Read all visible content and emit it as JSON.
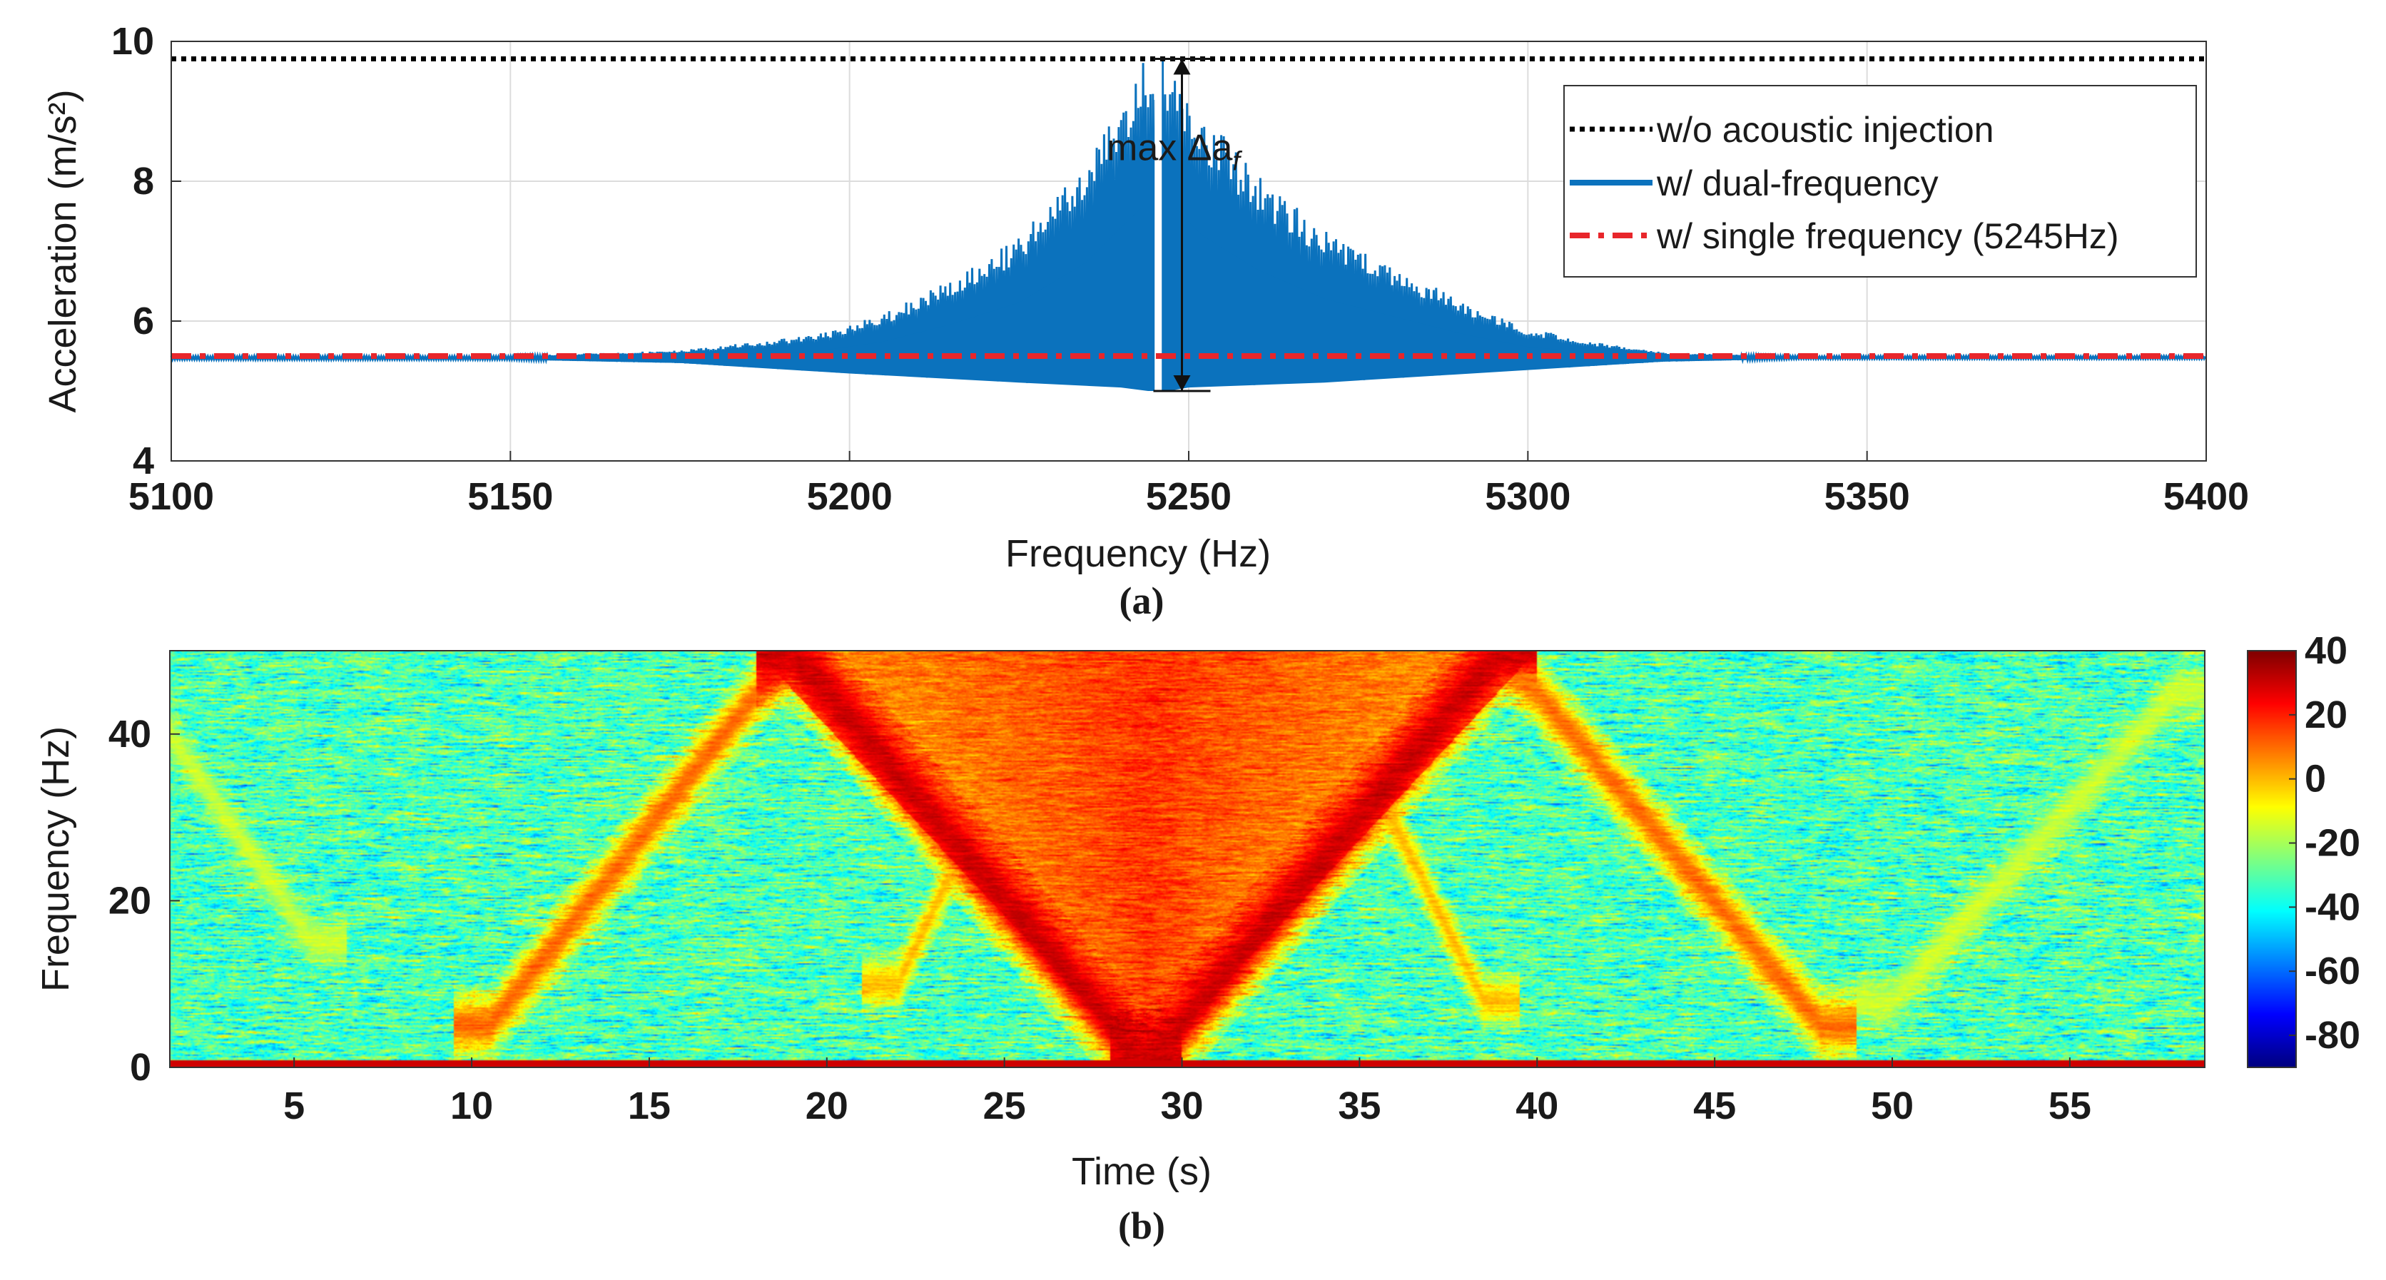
{
  "chart_data": [
    {
      "type": "line",
      "panel": "a",
      "caption": "(a)",
      "xlabel": "Frequency (Hz)",
      "ylabel": "Acceleration (m/s²)",
      "xlim": [
        5100,
        5400
      ],
      "ylim": [
        4,
        10
      ],
      "xticks": [
        5100,
        5150,
        5200,
        5250,
        5300,
        5350,
        5400
      ],
      "yticks": [
        4,
        6,
        8,
        10
      ],
      "grid": true,
      "legend_position": "top-right",
      "series": [
        {
          "name": "w/o acoustic injection",
          "color": "#000000",
          "style": "dotted",
          "x": [
            5100,
            5400
          ],
          "y": [
            9.75,
            9.75
          ]
        },
        {
          "name": "w/ dual-frequency",
          "color": "#0b72bd",
          "style": "solid",
          "upper_envelope": {
            "x": [
              5100,
              5150,
              5175,
              5195,
              5205,
              5215,
              5225,
              5235,
              5240,
              5243,
              5245.5,
              5248,
              5252,
              5260,
              5270,
              5280,
              5290,
              5300,
              5310,
              5320,
              5340,
              5400
            ],
            "y": [
              5.5,
              5.5,
              5.58,
              5.8,
              6.1,
              6.6,
              7.2,
              8.3,
              9.2,
              9.75,
              9.75,
              9.75,
              9.0,
              8.1,
              7.3,
              6.8,
              6.3,
              5.9,
              5.7,
              5.55,
              5.5,
              5.5
            ]
          },
          "lower_envelope": {
            "x": [
              5100,
              5150,
              5175,
              5200,
              5225,
              5240,
              5244,
              5245.5,
              5247,
              5250,
              5270,
              5300,
              5320,
              5340,
              5400
            ],
            "y": [
              5.45,
              5.45,
              5.4,
              5.25,
              5.12,
              5.05,
              5.0,
              5.0,
              5.0,
              5.05,
              5.12,
              5.3,
              5.42,
              5.46,
              5.46
            ]
          }
        },
        {
          "name": "w/ single frequency (5245Hz)",
          "color": "#e8262b",
          "style": "dashdot",
          "x": [
            5100,
            5400
          ],
          "y": [
            5.5,
            5.5
          ]
        }
      ],
      "annotations": [
        {
          "text": "max Δa",
          "subscript": "f",
          "x": 5249,
          "y_from": 5.0,
          "y_to": 9.75
        }
      ]
    },
    {
      "type": "heatmap",
      "panel": "b",
      "caption": "(b)",
      "xlabel": "Time (s)",
      "ylabel": "Frequency (Hz)",
      "xlim": [
        1.5,
        58.8
      ],
      "ylim": [
        0,
        50
      ],
      "xticks": [
        5,
        10,
        15,
        20,
        25,
        30,
        35,
        40,
        45,
        50,
        55
      ],
      "yticks": [
        0,
        20,
        40
      ],
      "colorbar": {
        "min": -90,
        "max": 40,
        "ticks": [
          40,
          20,
          0,
          -20,
          -40,
          -60,
          -80
        ],
        "colormap": "jet"
      },
      "background_level_db": -32,
      "baseline": {
        "frequency_hz": 0.5,
        "level_db": 30
      },
      "ridges": [
        {
          "t": [
            10.5,
            19.0
          ],
          "f": [
            5,
            50
          ],
          "level_db": 10,
          "width_hz": 2.5
        },
        {
          "t": [
            19.0,
            29.0
          ],
          "f": [
            50,
            0
          ],
          "level_db": 30,
          "width_hz": 3.5
        },
        {
          "t": [
            29.0,
            39.0
          ],
          "f": [
            0,
            50
          ],
          "level_db": 30,
          "width_hz": 3.5
        },
        {
          "t": [
            39.0,
            48.0
          ],
          "f": [
            50,
            5
          ],
          "level_db": 10,
          "width_hz": 2.5
        },
        {
          "t": [
            22.0,
            26.5
          ],
          "f": [
            10,
            50
          ],
          "level_db": 0,
          "width_hz": 2.0
        },
        {
          "t": [
            33.5,
            38.5
          ],
          "f": [
            50,
            8
          ],
          "level_db": 0,
          "width_hz": 2.0
        },
        {
          "t": [
            1.5,
            5.5
          ],
          "f": [
            40,
            15
          ],
          "level_db": -15,
          "width_hz": 2.0
        },
        {
          "t": [
            50.0,
            58.0
          ],
          "f": [
            8,
            45
          ],
          "level_db": -15,
          "width_hz": 2.0
        }
      ],
      "hot_region": {
        "t_center": 29.0,
        "t_halfwidth_top": 11.0,
        "level_db": 15
      }
    }
  ]
}
